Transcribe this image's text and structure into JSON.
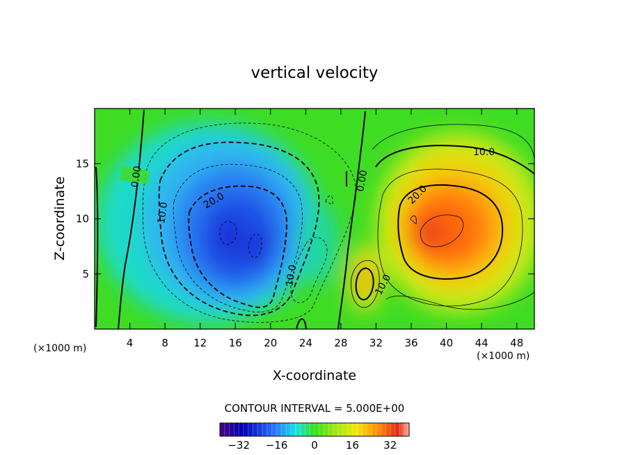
{
  "chart_data": {
    "type": "heatmap",
    "title": "vertical velocity",
    "xlabel": "X-coordinate",
    "ylabel": "Z-coordinate",
    "x_unit": "(×1000 m)",
    "y_unit": "(×1000 m)",
    "xlim": [
      0,
      50
    ],
    "ylim": [
      0,
      20
    ],
    "x_ticks": [
      4,
      8,
      12,
      16,
      20,
      24,
      28,
      32,
      36,
      40,
      44,
      48
    ],
    "y_ticks": [
      5,
      10,
      15
    ],
    "contour_interval_text": "CONTOUR INTERVAL = 5.000E+00",
    "colorbar": {
      "range": [
        -40,
        40
      ],
      "ticks": [
        -32,
        -16,
        0,
        16,
        32
      ]
    },
    "features": [
      {
        "kind": "downdraft",
        "x": 16,
        "z": 8.5,
        "min_value": -35
      },
      {
        "kind": "updraft",
        "x": 40,
        "z": 9.5,
        "max_value": 30
      },
      {
        "kind": "updraft",
        "x": 31,
        "z": 4.5,
        "max_value": 14
      }
    ],
    "contour_labels": [
      {
        "text": "0.00",
        "x": 5,
        "z": 14
      },
      {
        "text": "10.0",
        "x": 7.5,
        "z": 10.5
      },
      {
        "text": "20.0",
        "x": 14,
        "z": 11.6
      },
      {
        "text": "10.0",
        "x": 22,
        "z": 4.7
      },
      {
        "text": "0.00",
        "x": 30,
        "z": 13.3
      },
      {
        "text": "20.0",
        "x": 36.5,
        "z": 12.2
      },
      {
        "text": "10.0",
        "x": 42,
        "z": 16.1
      },
      {
        "text": "10.0",
        "x": 32.5,
        "z": 3.8
      }
    ]
  }
}
